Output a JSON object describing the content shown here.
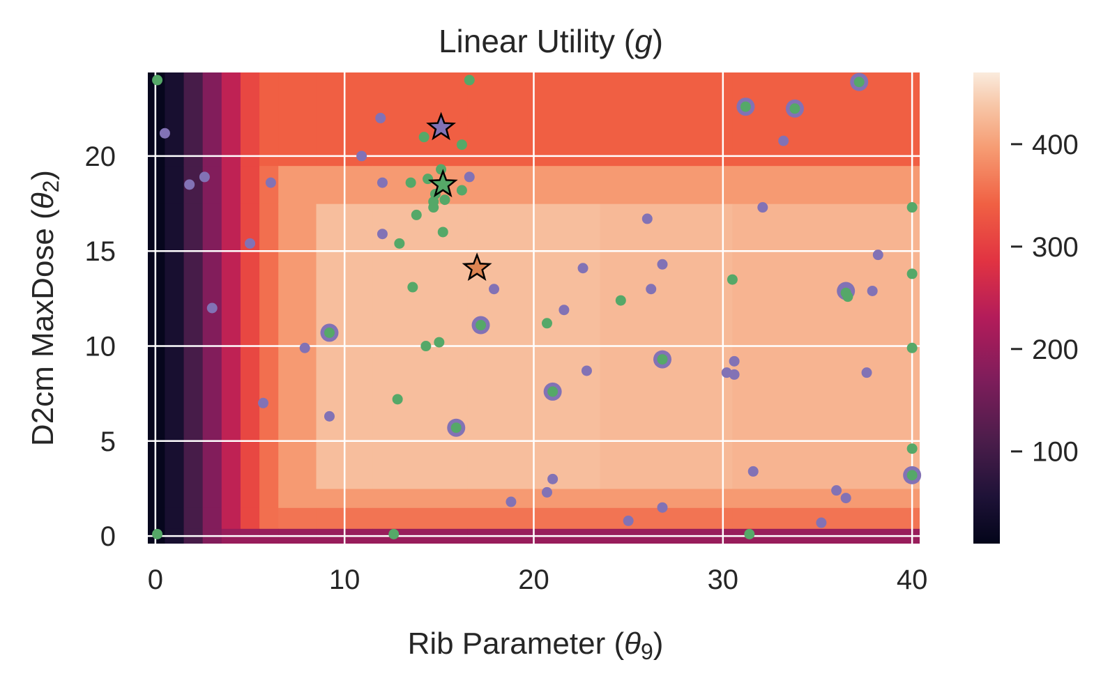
{
  "chart_data": {
    "type": "heatmap",
    "title": "Linear Utility (g)",
    "title_parts": {
      "prefix": "Linear Utility (",
      "var": "g",
      "suffix": ")"
    },
    "xlabel": "Rib Parameter (θ9)",
    "xlabel_parts": {
      "prefix": "Rib Parameter (",
      "var": "θ",
      "sub": "9",
      "suffix": ")"
    },
    "ylabel": "D2cm MaxDose (θ2)",
    "ylabel_parts": {
      "prefix": "D2cm MaxDose (",
      "var": "θ",
      "sub": "2",
      "suffix": ")"
    },
    "xlim": [
      -0.4,
      40.4
    ],
    "ylim": [
      -0.4,
      24.4
    ],
    "xticks": [
      0,
      10,
      20,
      30,
      40
    ],
    "yticks": [
      0,
      5,
      10,
      15,
      20
    ],
    "grid": true,
    "colormap": "rocket",
    "colorbar": {
      "range": [
        10,
        470
      ],
      "ticks": [
        100,
        200,
        300,
        400
      ]
    },
    "heatmap_columns": [
      {
        "x_from": 0,
        "x_to": 1,
        "value": 15
      },
      {
        "x_from": 1,
        "x_to": 2,
        "value": 45
      },
      {
        "x_from": 2,
        "x_to": 3,
        "value": 105
      },
      {
        "x_from": 3,
        "x_to": 4,
        "value": 175
      },
      {
        "x_from": 4,
        "x_to": 5,
        "value": 245
      },
      {
        "x_from": 5,
        "x_to": 6,
        "value": 310
      },
      {
        "x_from": 6,
        "x_to": 7,
        "value": 355
      },
      {
        "x_from": 7,
        "x_to": 9,
        "value": 395
      },
      {
        "x_from": 9,
        "x_to": 12,
        "value": 430
      },
      {
        "x_from": 12,
        "x_to": 17,
        "value": 448
      },
      {
        "x_from": 17,
        "x_to": 24,
        "value": 440
      },
      {
        "x_from": 24,
        "x_to": 31,
        "value": 425
      },
      {
        "x_from": 31,
        "x_to": 41,
        "value": 420
      }
    ],
    "heatmap_rows": [
      {
        "y_from": -0.4,
        "y_to": 0.4,
        "value": 200
      },
      {
        "y_from": 0.4,
        "y_to": 1.5,
        "value": 360
      },
      {
        "y_from": 1.5,
        "y_to": 2.5,
        "value": 395
      },
      {
        "y_from": 2.5,
        "y_to": 17.5,
        "value": 430
      },
      {
        "y_from": 17.5,
        "y_to": 19.5,
        "value": 395
      },
      {
        "y_from": 19.5,
        "y_to": 24.4,
        "value": 340
      }
    ],
    "series": [
      {
        "marker": "dot",
        "color": "#8272b5",
        "points": [
          [
            0.5,
            21.2
          ],
          [
            1.8,
            18.5
          ],
          [
            2.6,
            18.9
          ],
          [
            3.0,
            12.0
          ],
          [
            5.0,
            15.4
          ],
          [
            5.7,
            7.0
          ],
          [
            6.1,
            18.6
          ],
          [
            7.9,
            9.9
          ],
          [
            9.2,
            6.3
          ],
          [
            10.9,
            20.0
          ],
          [
            11.9,
            22.0
          ],
          [
            12.0,
            15.9
          ],
          [
            12.0,
            18.6
          ],
          [
            16.6,
            18.9
          ],
          [
            17.9,
            13.0
          ],
          [
            18.8,
            1.8
          ],
          [
            20.7,
            2.3
          ],
          [
            21.0,
            3.0
          ],
          [
            21.6,
            11.9
          ],
          [
            22.6,
            14.1
          ],
          [
            22.8,
            8.7
          ],
          [
            25.0,
            0.8
          ],
          [
            26.0,
            16.7
          ],
          [
            26.2,
            13.0
          ],
          [
            26.8,
            14.3
          ],
          [
            26.8,
            1.5
          ],
          [
            30.2,
            8.6
          ],
          [
            30.6,
            9.2
          ],
          [
            30.6,
            8.5
          ],
          [
            31.6,
            3.4
          ],
          [
            32.1,
            17.3
          ],
          [
            33.2,
            20.8
          ],
          [
            35.2,
            0.7
          ],
          [
            36.0,
            2.4
          ],
          [
            36.5,
            2.0
          ],
          [
            37.6,
            8.6
          ],
          [
            37.9,
            12.9
          ],
          [
            38.2,
            14.8
          ]
        ]
      },
      {
        "marker": "big-dot",
        "color": "#8272b5",
        "points": [
          [
            9.2,
            10.7
          ],
          [
            15.9,
            5.7
          ],
          [
            17.2,
            11.1
          ],
          [
            21.0,
            7.6
          ],
          [
            26.8,
            9.3
          ],
          [
            31.2,
            22.6
          ],
          [
            33.8,
            22.5
          ],
          [
            36.5,
            12.9
          ],
          [
            37.2,
            23.9
          ],
          [
            40.0,
            3.2
          ]
        ]
      },
      {
        "marker": "dot",
        "color": "#55a868",
        "points": [
          [
            0.1,
            24.0
          ],
          [
            0.1,
            0.1
          ],
          [
            9.2,
            10.7
          ],
          [
            12.6,
            0.1
          ],
          [
            12.8,
            7.2
          ],
          [
            12.9,
            15.4
          ],
          [
            13.5,
            18.6
          ],
          [
            13.6,
            13.1
          ],
          [
            13.8,
            16.9
          ],
          [
            14.2,
            21.0
          ],
          [
            14.3,
            10.0
          ],
          [
            14.4,
            18.8
          ],
          [
            14.7,
            17.6
          ],
          [
            14.7,
            17.3
          ],
          [
            14.8,
            18.0
          ],
          [
            15.0,
            10.2
          ],
          [
            15.1,
            19.3
          ],
          [
            15.2,
            16.0
          ],
          [
            15.3,
            17.7
          ],
          [
            15.9,
            5.7
          ],
          [
            16.2,
            20.6
          ],
          [
            16.2,
            18.2
          ],
          [
            16.6,
            24.0
          ],
          [
            17.2,
            11.1
          ],
          [
            20.7,
            11.2
          ],
          [
            21.0,
            7.6
          ],
          [
            24.6,
            12.4
          ],
          [
            26.8,
            9.3
          ],
          [
            30.5,
            13.5
          ],
          [
            31.2,
            22.6
          ],
          [
            31.4,
            0.1
          ],
          [
            33.8,
            22.5
          ],
          [
            36.5,
            12.8
          ],
          [
            36.6,
            12.6
          ],
          [
            37.2,
            23.9
          ],
          [
            40.0,
            17.3
          ],
          [
            40.0,
            13.8
          ],
          [
            40.0,
            9.9
          ],
          [
            40.0,
            4.6
          ],
          [
            40.0,
            3.2
          ]
        ]
      },
      {
        "marker": "star",
        "points": [
          {
            "x": 15.1,
            "y": 21.5,
            "color": "#8272b5"
          },
          {
            "x": 15.2,
            "y": 18.5,
            "color": "#55a868"
          },
          {
            "x": 17.0,
            "y": 14.1,
            "color": "#dd8452"
          }
        ]
      }
    ]
  }
}
